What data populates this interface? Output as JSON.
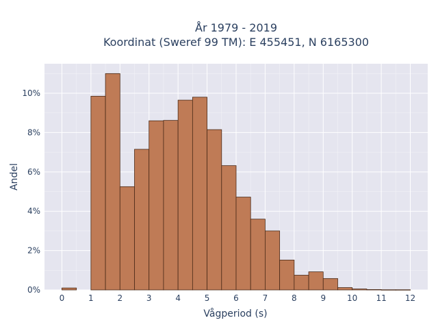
{
  "chart_data": {
    "type": "bar",
    "title_line1": "År 1979 - 2019",
    "title_line2": "Koordinat (Sweref 99 TM): E 455451, N 6165300",
    "xlabel": "Vågperiod (s)",
    "ylabel": "Andel",
    "bin_width": 0.5,
    "bin_starts": [
      0,
      0.5,
      1,
      1.5,
      2,
      2.5,
      3,
      3.5,
      4,
      4.5,
      5,
      5.5,
      6,
      6.5,
      7,
      7.5,
      8,
      8.5,
      9,
      9.5,
      10,
      10.5,
      11,
      11.5
    ],
    "values": [
      0.1,
      0,
      9.85,
      11.0,
      5.25,
      7.15,
      8.6,
      8.62,
      9.65,
      9.8,
      8.15,
      6.32,
      4.72,
      3.6,
      3.0,
      1.52,
      0.75,
      0.92,
      0.58,
      0.12,
      0.05,
      0.02,
      0.01,
      0.01
    ],
    "xticks": [
      0,
      1,
      2,
      3,
      4,
      5,
      6,
      7,
      8,
      9,
      10,
      11,
      12
    ],
    "xtick_labels": [
      "0",
      "1",
      "2",
      "3",
      "4",
      "5",
      "6",
      "7",
      "8",
      "9",
      "10",
      "11",
      "12"
    ],
    "yticks": [
      0,
      2,
      4,
      6,
      8,
      10
    ],
    "ytick_labels": [
      "0%",
      "2%",
      "4%",
      "6%",
      "8%",
      "10%"
    ],
    "xlim": [
      -0.6,
      12.6
    ],
    "ylim": [
      0,
      11.5
    ],
    "grid": true,
    "colors": {
      "bar_fill": "#bf7b56",
      "bar_edge": "#4a2a18",
      "plot_bg": "#e5e5ef"
    }
  }
}
